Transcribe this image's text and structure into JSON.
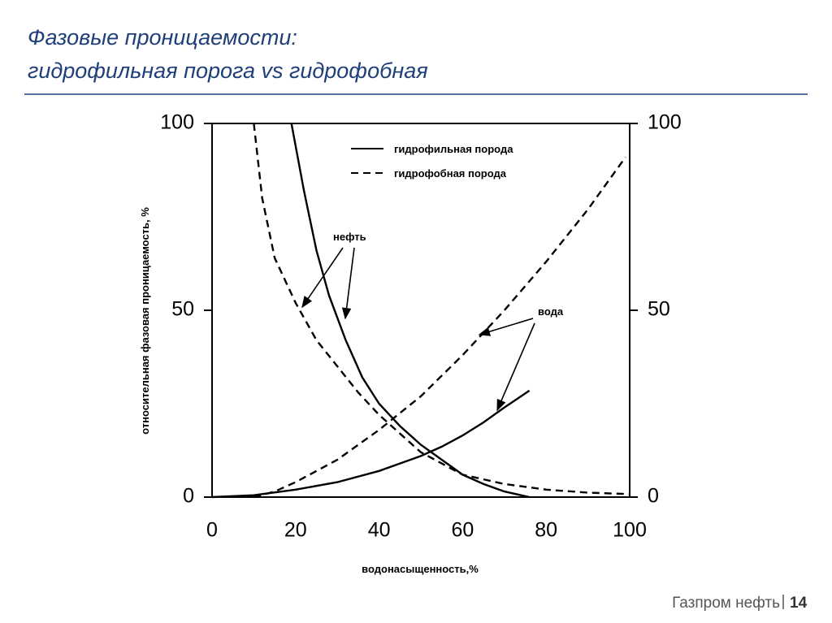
{
  "slide": {
    "title": [
      "Фазовые проницаемости:",
      "гидрофильная порога vs гидрофобная"
    ],
    "footer": "Газпром нефть",
    "page": "14"
  },
  "chart_data": {
    "type": "line",
    "xlabel": "водонасыщенность,%",
    "ylabel": "относительная фазовая  проницаемость, %",
    "xlim": [
      0,
      100
    ],
    "xticks": [
      0,
      20,
      40,
      60,
      80,
      100
    ],
    "ylim": [
      0,
      100
    ],
    "yticks": [
      0,
      50,
      100
    ],
    "y2lim": [
      0,
      100
    ],
    "y2ticks": [
      0,
      50,
      100
    ],
    "grid": false,
    "legend": "top",
    "annotations": [
      "нефть",
      "вода"
    ],
    "series": [
      {
        "name": "гидрофильная порода",
        "color": "#000000",
        "style": "solid",
        "x": [
          19,
          22,
          25,
          28,
          32,
          36,
          40,
          45,
          50,
          55,
          60,
          65,
          70,
          76
        ],
        "values": [
          100,
          82,
          66,
          54,
          42,
          32,
          25,
          19,
          14,
          10,
          6,
          3.5,
          1.5,
          0
        ]
      },
      {
        "name": "гидрофобная порода",
        "color": "#000000",
        "style": "dashed",
        "x": [
          10,
          12,
          15,
          20,
          25,
          30,
          35,
          40,
          45,
          50,
          55,
          60,
          70,
          80,
          90,
          100
        ],
        "values": [
          100,
          80,
          64,
          52,
          42,
          35,
          28,
          22,
          17,
          12,
          9,
          6,
          3.5,
          2,
          1.2,
          0.8
        ]
      },
      {
        "color": "#000000",
        "style": "solid",
        "x": [
          0,
          10,
          20,
          30,
          40,
          50,
          55,
          60,
          65,
          70,
          76
        ],
        "values": [
          0,
          0.5,
          2,
          4,
          7,
          11,
          13.5,
          16.5,
          20,
          24,
          28.5
        ]
      },
      {
        "color": "#000000",
        "style": "dashed",
        "x": [
          10,
          15,
          20,
          30,
          40,
          50,
          60,
          70,
          80,
          90,
          99
        ],
        "values": [
          0,
          1.5,
          4,
          10,
          18,
          27,
          38,
          50,
          63,
          77,
          91
        ]
      }
    ]
  }
}
